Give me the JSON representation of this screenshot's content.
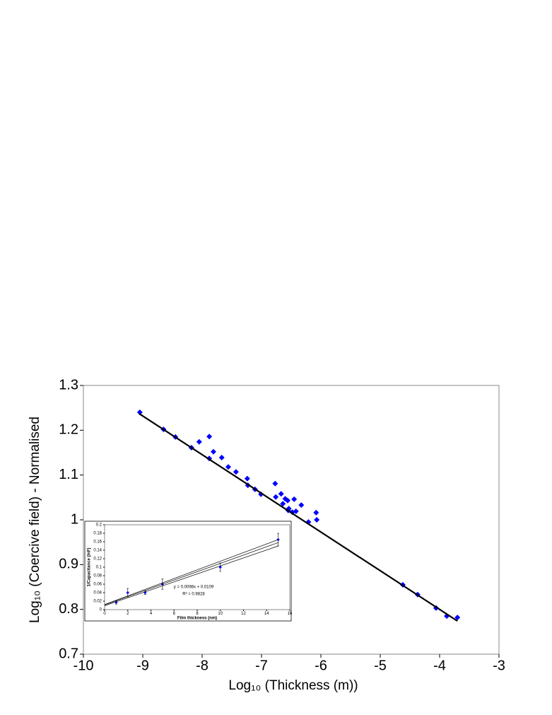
{
  "chart_data": [
    {
      "type": "scatter",
      "x_label": "Log₁₀ (Thickness (m))",
      "y_label": "Log₁₀ (Coercive field) - Normalised",
      "xlim": [
        -10,
        -3
      ],
      "xticks": [
        -10,
        -9,
        -8,
        -7,
        -6,
        -5,
        -4,
        -3
      ],
      "ylim": [
        0.7,
        1.3
      ],
      "yticks": [
        0.7,
        0.8,
        0.9,
        1,
        1.1,
        1.2,
        1.3
      ],
      "series": [
        {
          "style": "markers",
          "color": "#0000ff",
          "x": [
            -9.05,
            -8.65,
            -8.45,
            -8.18,
            -8.05,
            -7.88,
            -7.88,
            -7.81,
            -7.67,
            -7.56,
            -7.43,
            -7.24,
            -7.23,
            -7.11,
            -7.01,
            -6.77,
            -6.76,
            -6.67,
            -6.64,
            -6.6,
            -6.56,
            -6.55,
            -6.54,
            -6.48,
            -6.45,
            -6.42,
            -6.33,
            -6.21,
            -6.08,
            -6.07,
            -4.62,
            -4.37,
            -4.06,
            -3.88,
            -3.7
          ],
          "values": [
            1.24,
            1.202,
            1.185,
            1.161,
            1.174,
            1.186,
            1.137,
            1.152,
            1.139,
            1.118,
            1.107,
            1.092,
            1.077,
            1.068,
            1.057,
            1.081,
            1.051,
            1.058,
            1.036,
            1.047,
            1.043,
            1.021,
            1.025,
            1.017,
            1.046,
            1.019,
            1.033,
            0.995,
            1.016,
            1.0,
            0.855,
            0.833,
            0.803,
            0.785,
            0.782
          ]
        },
        {
          "style": "line",
          "color": "#000000",
          "x": [
            -9.06,
            -3.7
          ],
          "values": [
            1.237,
            0.774
          ]
        }
      ]
    },
    {
      "type": "scatter",
      "x_label": "Film thickness (nm)",
      "y_label": "1/Capacitance (/nF)",
      "annotations": [
        "y = 0.0098x + 0.0109",
        "R² = 0.9828"
      ],
      "xlim": [
        0,
        16
      ],
      "xticks": [
        0,
        2,
        4,
        6,
        8,
        10,
        12,
        14,
        16
      ],
      "ylim": [
        0,
        0.2
      ],
      "yticks": [
        0,
        0.02,
        0.04,
        0.06,
        0.08,
        0.1,
        0.12,
        0.14,
        0.16,
        0.18,
        0.2
      ],
      "series": [
        {
          "style": "markers",
          "color": "#0000ff",
          "x": [
            1,
            2,
            3.5,
            5,
            10,
            15
          ],
          "values": [
            0.017,
            0.04,
            0.04,
            0.06,
            0.1,
            0.165
          ],
          "errors": [
            0.004,
            0.01,
            0.004,
            0.012,
            0.01,
            0.015
          ]
        },
        {
          "style": "line",
          "color": "#000000",
          "x": [
            0,
            15
          ],
          "values": [
            0.0109,
            0.158
          ]
        },
        {
          "style": "line",
          "color": "#000000",
          "x": [
            0,
            15
          ],
          "values": [
            0.012,
            0.165
          ]
        },
        {
          "style": "line",
          "color": "#000000",
          "x": [
            0,
            15
          ],
          "values": [
            0.009,
            0.15
          ]
        }
      ]
    }
  ]
}
